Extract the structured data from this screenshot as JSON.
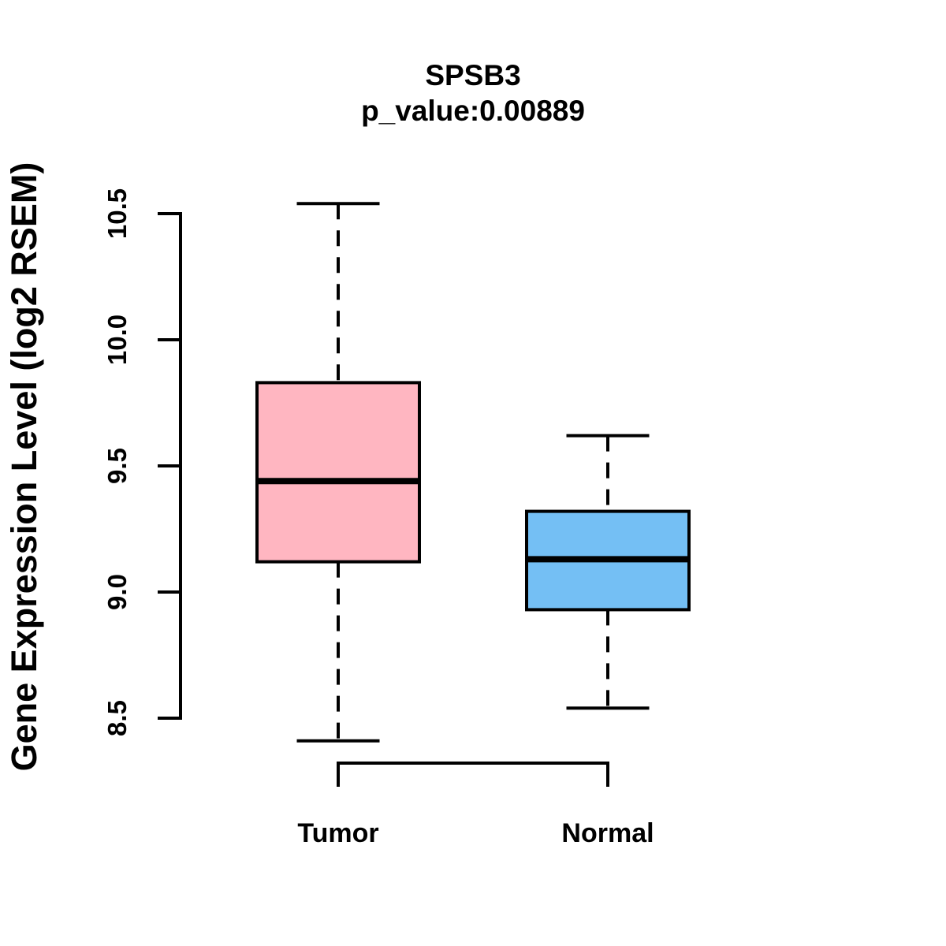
{
  "chart_data": {
    "type": "boxplot",
    "title": "SPSB3",
    "subtitle": "p_value:0.00889",
    "ylabel": "Gene Expression Level (log2 RSEM)",
    "xlabel": "",
    "ylim": [
      8.3,
      10.65
    ],
    "yticks": [
      8.5,
      9.0,
      9.5,
      10.0,
      10.5
    ],
    "ytick_labels": [
      "8.5",
      "9.0",
      "9.5",
      "10.0",
      "10.5"
    ],
    "grid": false,
    "legend": "none",
    "colors": {
      "box_border": "#000000",
      "median": "#000000",
      "axis": "#000000",
      "text": "#000000",
      "background": "#ffffff"
    },
    "groups": [
      {
        "label": "Tumor",
        "color": "#FFB6C1",
        "stats": {
          "whisker_low": 8.41,
          "q1": 9.12,
          "median": 9.44,
          "q3": 9.83,
          "whisker_high": 10.54
        }
      },
      {
        "label": "Normal",
        "color": "#74BFF4",
        "stats": {
          "whisker_low": 8.54,
          "q1": 8.93,
          "median": 9.13,
          "q3": 9.32,
          "whisker_high": 9.62
        }
      }
    ]
  }
}
